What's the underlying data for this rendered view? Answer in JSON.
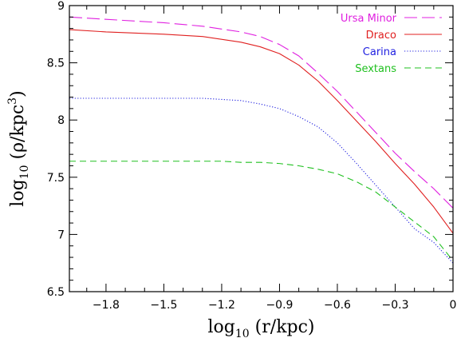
{
  "chart_data": {
    "type": "line",
    "xlabel": {
      "main": "log",
      "sub": "10",
      "rest": " (r/kpc)"
    },
    "ylabel": {
      "main": "log",
      "sub": "10",
      "rest": " (ρ/kpc",
      "sup": "3",
      "end": ")"
    },
    "xlim": [
      -1.99,
      0.0
    ],
    "ylim": [
      6.5,
      9.0
    ],
    "x_ticks": [
      -1.8,
      -1.5,
      -1.2,
      -0.9,
      -0.6,
      -0.3,
      0
    ],
    "x_tick_labels": [
      "−1.8",
      "−1.5",
      "−1.2",
      "−0.9",
      "−0.6",
      "−0.3",
      "0"
    ],
    "y_ticks": [
      6.5,
      7,
      7.5,
      8,
      8.5,
      9
    ],
    "y_tick_labels": [
      "6.5",
      "7",
      "7.5",
      "8",
      "8.5",
      "9"
    ],
    "legend_position": "top-right",
    "grid": false,
    "series": [
      {
        "name": "Ursa Minor",
        "color": "#e020e0",
        "dash": "long-dash",
        "x": [
          -1.99,
          -1.8,
          -1.5,
          -1.3,
          -1.1,
          -1.0,
          -0.9,
          -0.8,
          -0.7,
          -0.6,
          -0.5,
          -0.4,
          -0.3,
          -0.2,
          -0.1,
          0.0
        ],
        "y": [
          8.9,
          8.88,
          8.85,
          8.82,
          8.77,
          8.73,
          8.66,
          8.56,
          8.41,
          8.25,
          8.07,
          7.89,
          7.71,
          7.55,
          7.4,
          7.23
        ]
      },
      {
        "name": "Draco",
        "color": "#e02020",
        "dash": "solid",
        "x": [
          -1.99,
          -1.8,
          -1.5,
          -1.3,
          -1.1,
          -1.0,
          -0.9,
          -0.8,
          -0.7,
          -0.6,
          -0.5,
          -0.4,
          -0.3,
          -0.2,
          -0.1,
          0.0
        ],
        "y": [
          8.79,
          8.77,
          8.75,
          8.73,
          8.68,
          8.64,
          8.58,
          8.48,
          8.34,
          8.17,
          7.99,
          7.81,
          7.62,
          7.44,
          7.24,
          7.01
        ]
      },
      {
        "name": "Carina",
        "color": "#2020e0",
        "dash": "dotted",
        "x": [
          -1.99,
          -1.8,
          -1.5,
          -1.3,
          -1.2,
          -1.1,
          -1.0,
          -0.9,
          -0.8,
          -0.7,
          -0.6,
          -0.5,
          -0.4,
          -0.3,
          -0.2,
          -0.1,
          0.0
        ],
        "y": [
          8.19,
          8.19,
          8.19,
          8.19,
          8.18,
          8.17,
          8.14,
          8.1,
          8.03,
          7.94,
          7.8,
          7.62,
          7.43,
          7.24,
          7.05,
          6.93,
          6.75
        ]
      },
      {
        "name": "Sextans",
        "color": "#20c020",
        "dash": "dashed",
        "x": [
          -1.99,
          -1.8,
          -1.5,
          -1.2,
          -1.1,
          -1.0,
          -0.9,
          -0.8,
          -0.7,
          -0.6,
          -0.5,
          -0.4,
          -0.3,
          -0.2,
          -0.1,
          0.0
        ],
        "y": [
          7.64,
          7.64,
          7.64,
          7.64,
          7.63,
          7.63,
          7.62,
          7.6,
          7.57,
          7.53,
          7.46,
          7.37,
          7.24,
          7.11,
          6.98,
          6.77
        ]
      }
    ]
  }
}
